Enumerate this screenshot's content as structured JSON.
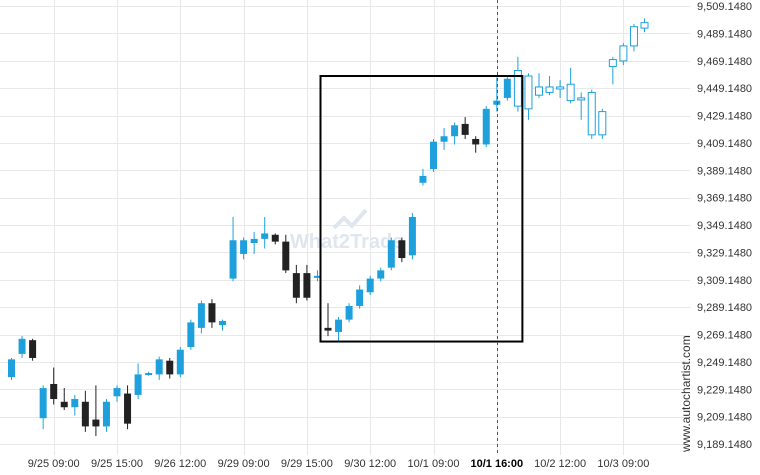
{
  "chart_data": {
    "type": "candlestick",
    "title": "",
    "xlabel": "",
    "ylabel": "",
    "ylim": [
      9180,
      9512
    ],
    "y_ticks": [
      "9,189.1480",
      "9,209.1480",
      "9,229.1480",
      "9,249.1480",
      "9,269.1480",
      "9,289.1480",
      "9,309.1480",
      "9,329.1480",
      "9,349.1480",
      "9,369.1480",
      "9,389.1480",
      "9,409.1480",
      "9,429.1480",
      "9,449.1480",
      "9,469.1480",
      "9,489.1480",
      "9,509.1480"
    ],
    "y_tick_values": [
      9189.148,
      9209.148,
      9229.148,
      9249.148,
      9269.148,
      9289.148,
      9309.148,
      9329.148,
      9349.148,
      9369.148,
      9389.148,
      9409.148,
      9429.148,
      9449.148,
      9469.148,
      9489.148,
      9509.148
    ],
    "x_ticks": [
      {
        "label": "9/25 09:00",
        "index": 4,
        "bold": false
      },
      {
        "label": "9/25 15:00",
        "index": 10,
        "bold": false
      },
      {
        "label": "9/26 12:00",
        "index": 16,
        "bold": false
      },
      {
        "label": "9/29 09:00",
        "index": 22,
        "bold": false
      },
      {
        "label": "9/29 15:00",
        "index": 28,
        "bold": false
      },
      {
        "label": "9/30 12:00",
        "index": 34,
        "bold": false
      },
      {
        "label": "10/1 09:00",
        "index": 40,
        "bold": false
      },
      {
        "label": "10/1 16:00",
        "index": 46,
        "bold": true
      },
      {
        "label": "10/2 12:00",
        "index": 52,
        "bold": false
      },
      {
        "label": "10/3 09:00",
        "index": 58,
        "bold": false
      }
    ],
    "candles": [
      {
        "o": 9238,
        "h": 9252,
        "c": 9251,
        "l": 9236
      },
      {
        "o": 9255,
        "h": 9268,
        "c": 9266,
        "l": 9252
      },
      {
        "o": 9265,
        "h": 9266,
        "c": 9252,
        "l": 9250
      },
      {
        "o": 9208,
        "h": 9232,
        "c": 9230,
        "l": 9200
      },
      {
        "o": 9233,
        "h": 9245,
        "c": 9222,
        "l": 9218
      },
      {
        "o": 9220,
        "h": 9230,
        "c": 9216,
        "l": 9214
      },
      {
        "o": 9216,
        "h": 9225,
        "c": 9222,
        "l": 9210
      },
      {
        "o": 9220,
        "h": 9228,
        "c": 9202,
        "l": 9198
      },
      {
        "o": 9207,
        "h": 9232,
        "c": 9202,
        "l": 9195
      },
      {
        "o": 9202,
        "h": 9222,
        "c": 9220,
        "l": 9198
      },
      {
        "o": 9224,
        "h": 9232,
        "c": 9230,
        "l": 9220
      },
      {
        "o": 9226,
        "h": 9232,
        "c": 9204,
        "l": 9200
      },
      {
        "o": 9225,
        "h": 9248,
        "c": 9240,
        "l": 9222
      },
      {
        "o": 9241,
        "h": 9242,
        "c": 9241,
        "l": 9239
      },
      {
        "o": 9240,
        "h": 9253,
        "c": 9251,
        "l": 9236
      },
      {
        "o": 9250,
        "h": 9252,
        "c": 9240,
        "l": 9237
      },
      {
        "o": 9240,
        "h": 9260,
        "c": 9258,
        "l": 9238
      },
      {
        "o": 9260,
        "h": 9280,
        "c": 9278,
        "l": 9258
      },
      {
        "o": 9274,
        "h": 9294,
        "c": 9292,
        "l": 9270
      },
      {
        "o": 9292,
        "h": 9295,
        "c": 9278,
        "l": 9274
      },
      {
        "o": 9276,
        "h": 9280,
        "c": 9279,
        "l": 9272
      },
      {
        "o": 9310,
        "h": 9355,
        "c": 9338,
        "l": 9308
      },
      {
        "o": 9328,
        "h": 9340,
        "c": 9338,
        "l": 9324
      },
      {
        "o": 9336,
        "h": 9344,
        "c": 9339,
        "l": 9328
      },
      {
        "o": 9339,
        "h": 9355,
        "c": 9343,
        "l": 9332
      },
      {
        "o": 9342,
        "h": 9343,
        "c": 9337,
        "l": 9335
      },
      {
        "o": 9337,
        "h": 9342,
        "c": 9316,
        "l": 9314
      },
      {
        "o": 9314,
        "h": 9320,
        "c": 9296,
        "l": 9292
      },
      {
        "o": 9314,
        "h": 9320,
        "c": 9296,
        "l": 9294
      },
      {
        "o": 9312,
        "h": 9316,
        "c": 9312,
        "l": 9308
      },
      {
        "o": 9274,
        "h": 9292,
        "c": 9272,
        "l": 9268
      },
      {
        "o": 9271,
        "h": 9282,
        "c": 9280,
        "l": 9264
      },
      {
        "o": 9280,
        "h": 9292,
        "c": 9290,
        "l": 9278
      },
      {
        "o": 9290,
        "h": 9305,
        "c": 9302,
        "l": 9288
      },
      {
        "o": 9300,
        "h": 9312,
        "c": 9310,
        "l": 9298
      },
      {
        "o": 9310,
        "h": 9318,
        "c": 9316,
        "l": 9308
      },
      {
        "o": 9318,
        "h": 9340,
        "c": 9338,
        "l": 9316
      },
      {
        "o": 9338,
        "h": 9340,
        "c": 9325,
        "l": 9322
      },
      {
        "o": 9327,
        "h": 9358,
        "c": 9355,
        "l": 9324
      },
      {
        "o": 9380,
        "h": 9390,
        "c": 9385,
        "l": 9378
      },
      {
        "o": 9390,
        "h": 9412,
        "c": 9410,
        "l": 9388
      },
      {
        "o": 9410,
        "h": 9420,
        "c": 9414,
        "l": 9404
      },
      {
        "o": 9414,
        "h": 9424,
        "c": 9422,
        "l": 9408
      },
      {
        "o": 9423,
        "h": 9428,
        "c": 9415,
        "l": 9412
      },
      {
        "o": 9412,
        "h": 9414,
        "c": 9408,
        "l": 9402
      },
      {
        "o": 9408,
        "h": 9436,
        "c": 9434,
        "l": 9406
      },
      {
        "o": 9437,
        "h": 9457,
        "c": 9440,
        "l": 9432
      },
      {
        "o": 9442,
        "h": 9458,
        "c": 9456,
        "l": 9440
      },
      {
        "o": 9436,
        "h": 9472,
        "c": 9462,
        "l": 9432
      },
      {
        "o": 9434,
        "h": 9460,
        "c": 9458,
        "l": 9426
      },
      {
        "o": 9444,
        "h": 9460,
        "c": 9450,
        "l": 9442
      },
      {
        "o": 9446,
        "h": 9458,
        "c": 9450,
        "l": 9444
      },
      {
        "o": 9449,
        "h": 9455,
        "c": 9450,
        "l": 9442
      },
      {
        "o": 9452,
        "h": 9464,
        "c": 9440,
        "l": 9438
      },
      {
        "o": 9442,
        "h": 9446,
        "c": 9442,
        "l": 9426
      },
      {
        "o": 9446,
        "h": 9448,
        "c": 9415,
        "l": 9412
      },
      {
        "o": 9415,
        "h": 9434,
        "c": 9432,
        "l": 9412
      },
      {
        "o": 9470,
        "h": 9472,
        "c": 9465,
        "l": 9452
      },
      {
        "o": 9469,
        "h": 9482,
        "c": 9480,
        "l": 9466
      },
      {
        "o": 9480,
        "h": 9496,
        "c": 9494,
        "l": 9476
      },
      {
        "o": 9493,
        "h": 9500,
        "c": 9497,
        "l": 9490
      }
    ],
    "pattern_box": {
      "start_index": 30,
      "end_index": 48,
      "top": 9458,
      "bottom": 9264
    },
    "vertical_marker_index": 46,
    "colors": {
      "up": "#1ea0dc",
      "down": "#222222",
      "forecast": "#1ea0dc",
      "grid": "#e8e8e8",
      "box": "#000000"
    },
    "forecast_start_index": 48,
    "watermark": "What2Trade",
    "side_credit": "www.autochartist.com"
  }
}
